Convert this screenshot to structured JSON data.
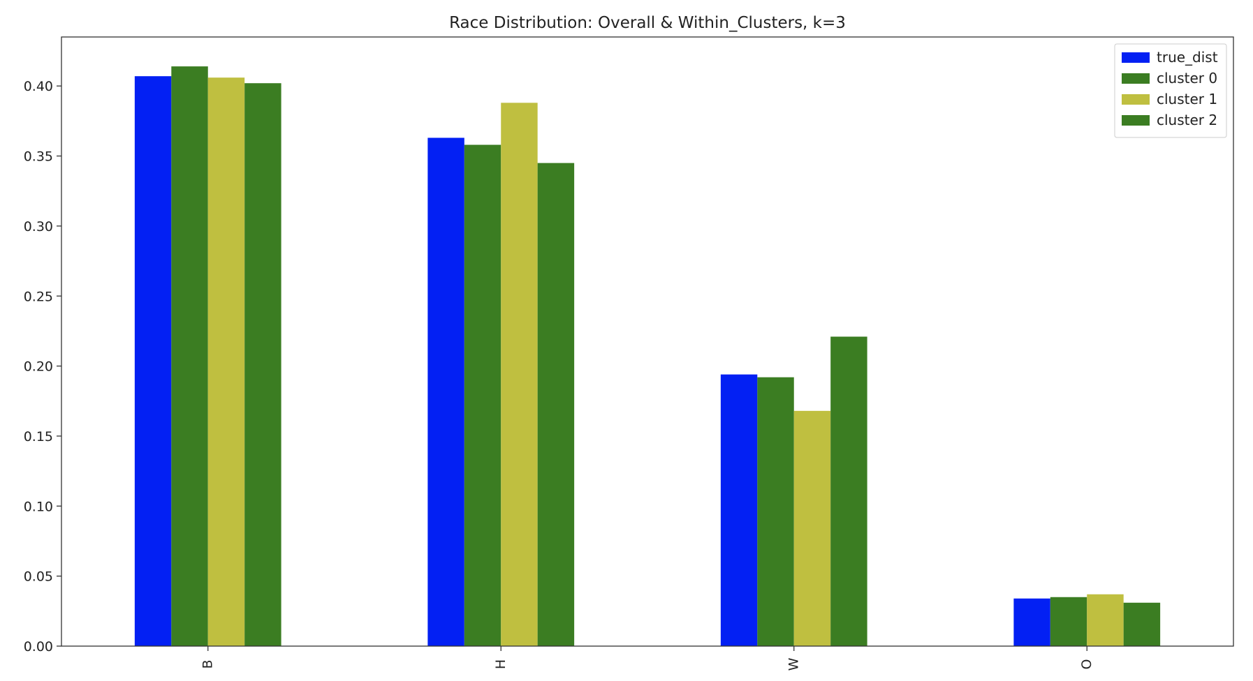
{
  "chart_data": {
    "type": "bar",
    "title": "Race Distribution: Overall & Within_Clusters, k=3",
    "xlabel": "",
    "ylabel": "",
    "categories": [
      "B",
      "H",
      "W",
      "O"
    ],
    "ylim": [
      0,
      0.435
    ],
    "yticks": [
      "0.00",
      "0.05",
      "0.10",
      "0.15",
      "0.20",
      "0.25",
      "0.30",
      "0.35",
      "0.40"
    ],
    "series": [
      {
        "name": "true_dist",
        "color": "#0320f3",
        "values": [
          0.407,
          0.363,
          0.194,
          0.034
        ]
      },
      {
        "name": "cluster 0",
        "color": "#3b7d22",
        "values": [
          0.414,
          0.358,
          0.192,
          0.035
        ]
      },
      {
        "name": "cluster 1",
        "color": "#bfbf40",
        "values": [
          0.406,
          0.388,
          0.168,
          0.037
        ]
      },
      {
        "name": "cluster 2",
        "color": "#3b7d22",
        "values": [
          0.402,
          0.345,
          0.221,
          0.031
        ]
      }
    ],
    "legend_position": "top-right",
    "grid": false
  }
}
